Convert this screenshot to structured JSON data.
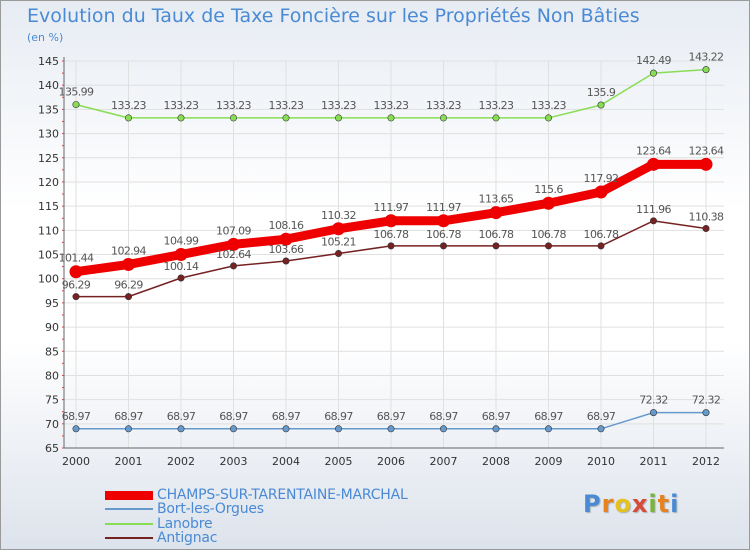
{
  "title": "Evolution du Taux de Taxe Foncière sur les Propriétés Non Bâties",
  "subtitle": "(en %)",
  "brand": "Proxiti",
  "chart_data": {
    "type": "line",
    "title": "Evolution du Taux de Taxe Foncière sur les Propriétés Non Bâties",
    "ylabel": "(en %)",
    "xlabel": "",
    "x": [
      "2000",
      "2001",
      "2002",
      "2003",
      "2004",
      "2005",
      "2006",
      "2007",
      "2008",
      "2009",
      "2010",
      "2011",
      "2012"
    ],
    "ylim": [
      65,
      145
    ],
    "yticks": [
      "65",
      "70",
      "75",
      "80",
      "85",
      "90",
      "95",
      "100",
      "105",
      "110",
      "115",
      "120",
      "125",
      "130",
      "135",
      "140",
      "145"
    ],
    "grid": true,
    "legend_position": "bottom-left",
    "series": [
      {
        "name": "CHAMPS-SUR-TARENTAINE-MARCHAL",
        "color": "#ee0000",
        "values": [
          101.44,
          102.94,
          104.99,
          107.09,
          108.16,
          110.32,
          111.97,
          111.97,
          113.65,
          115.6,
          117.92,
          123.64,
          123.64
        ],
        "labels": [
          "101.44",
          "102.94",
          "104.99",
          "107.09",
          "108.16",
          "110.32",
          "111.97",
          "111.97",
          "113.65",
          "115.6",
          "117.92",
          "123.64",
          "123.64"
        ]
      },
      {
        "name": "Bort-les-Orgues",
        "color": "#6699cc",
        "values": [
          68.97,
          68.97,
          68.97,
          68.97,
          68.97,
          68.97,
          68.97,
          68.97,
          68.97,
          68.97,
          68.97,
          72.32,
          72.32
        ],
        "labels": [
          "68.97",
          "68.97",
          "68.97",
          "68.97",
          "68.97",
          "68.97",
          "68.97",
          "68.97",
          "68.97",
          "68.97",
          "68.97",
          "72.32",
          "72.32"
        ]
      },
      {
        "name": "Lanobre",
        "color": "#88dd55",
        "values": [
          135.99,
          133.23,
          133.23,
          133.23,
          133.23,
          133.23,
          133.23,
          133.23,
          133.23,
          133.23,
          135.9,
          142.49,
          143.22
        ],
        "labels": [
          "135.99",
          "133.23",
          "133.23",
          "133.23",
          "133.23",
          "133.23",
          "133.23",
          "133.23",
          "133.23",
          "133.23",
          "135.9",
          "142.49",
          "143.22"
        ]
      },
      {
        "name": "Antignac",
        "color": "#772222",
        "values": [
          96.29,
          96.29,
          100.14,
          102.64,
          103.66,
          105.21,
          106.78,
          106.78,
          106.78,
          106.78,
          106.78,
          111.96,
          110.38
        ],
        "labels": [
          "96.29",
          "96.29",
          "100.14",
          "102.64",
          "103.66",
          "105.21",
          "106.78",
          "106.78",
          "106.78",
          "106.78",
          "106.78",
          "111.96",
          "110.38"
        ]
      }
    ]
  }
}
